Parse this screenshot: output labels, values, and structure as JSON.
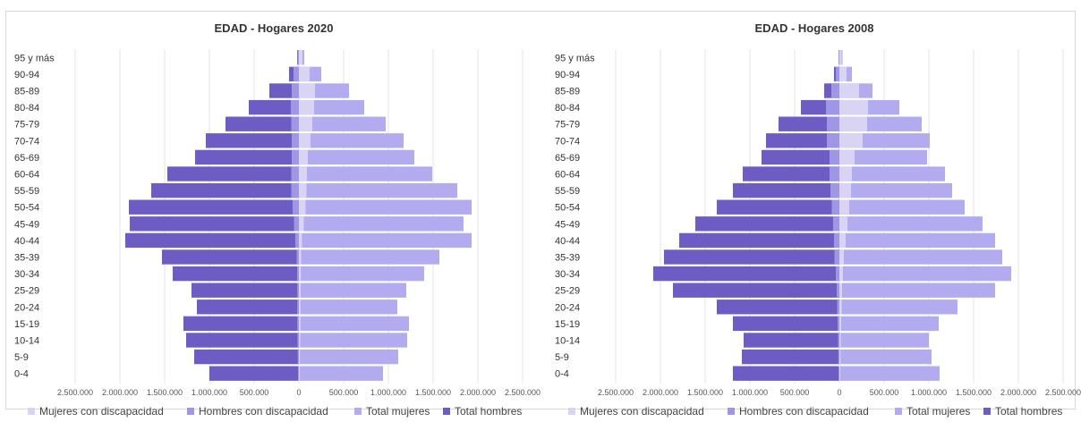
{
  "colors": {
    "mujeres_disc": "#d9d4f4",
    "hombres_disc": "#a096e6",
    "total_mujeres": "#b3abf0",
    "total_hombres": "#6c5cc3"
  },
  "chart_data": [
    {
      "type": "bar",
      "title": "EDAD - Hogares 2020",
      "categories": [
        "95 y más",
        "90-94",
        "85-89",
        "80-84",
        "75-79",
        "70-74",
        "65-69",
        "60-64",
        "55-59",
        "50-54",
        "45-49",
        "40-44",
        "35-39",
        "30-34",
        "25-29",
        "20-24",
        "15-19",
        "10-14",
        "5-9",
        "0-4"
      ],
      "xlim": [
        -2500000,
        2500000
      ],
      "xticks": [
        -2500000,
        -2000000,
        -1500000,
        -1000000,
        -500000,
        0,
        500000,
        1000000,
        1500000,
        2000000,
        2500000
      ],
      "xtick_labels": [
        "2.500.000",
        "2.000.000",
        "1.500.000",
        "1.000.000",
        "500.000",
        "0",
        "500.000",
        "1.000.000",
        "1.500.000",
        "2.000.000",
        "2.500.000"
      ],
      "legend_position": "bottom",
      "series": [
        {
          "name": "Mujeres con discapacidad",
          "values": [
            40000,
            120000,
            180000,
            170000,
            150000,
            130000,
            100000,
            90000,
            85000,
            75000,
            55000,
            35000,
            25000,
            22000,
            20000,
            18000,
            18000,
            15000,
            12000,
            10000
          ]
        },
        {
          "name": "Hombres con discapacidad",
          "values": [
            15000,
            60000,
            80000,
            90000,
            85000,
            80000,
            80000,
            85000,
            85000,
            70000,
            55000,
            40000,
            25000,
            20000,
            18000,
            18000,
            18000,
            16000,
            13000,
            10000
          ]
        },
        {
          "name": "Total mujeres",
          "values": [
            60000,
            250000,
            560000,
            730000,
            970000,
            1170000,
            1290000,
            1490000,
            1770000,
            1930000,
            1840000,
            1930000,
            1570000,
            1400000,
            1200000,
            1100000,
            1230000,
            1210000,
            1110000,
            940000
          ]
        },
        {
          "name": "Total hombres",
          "values": [
            20000,
            110000,
            330000,
            560000,
            820000,
            1040000,
            1160000,
            1470000,
            1650000,
            1900000,
            1890000,
            1940000,
            1530000,
            1410000,
            1200000,
            1140000,
            1290000,
            1260000,
            1170000,
            1000000
          ]
        }
      ]
    },
    {
      "type": "bar",
      "title": "EDAD - Hogares 2008",
      "categories": [
        "95 y más",
        "90-94",
        "85-89",
        "80-84",
        "75-79",
        "70-74",
        "65-69",
        "60-64",
        "55-59",
        "50-54",
        "45-49",
        "40-44",
        "35-39",
        "30-34",
        "25-29",
        "20-24",
        "15-19",
        "10-14",
        "5-9",
        "0-4"
      ],
      "xlim": [
        -2500000,
        2500000
      ],
      "xticks": [
        -2500000,
        -2000000,
        -1500000,
        -1000000,
        -500000,
        0,
        500000,
        1000000,
        1500000,
        2000000,
        2500000
      ],
      "xtick_labels": [
        "2.500.000",
        "2.000.000",
        "1.500.000",
        "1.000.000",
        "500.000",
        "0",
        "500.000",
        "1.000.000",
        "1.500.000",
        "2.000.000",
        "2.500.000"
      ],
      "legend_position": "bottom",
      "series": [
        {
          "name": "Mujeres con discapacidad",
          "values": [
            25000,
            80000,
            220000,
            320000,
            310000,
            260000,
            170000,
            140000,
            130000,
            110000,
            90000,
            70000,
            50000,
            40000,
            30000,
            25000,
            20000,
            15000,
            12000,
            10000
          ]
        },
        {
          "name": "Hombres con discapacidad",
          "values": [
            10000,
            40000,
            90000,
            150000,
            140000,
            140000,
            110000,
            110000,
            100000,
            85000,
            70000,
            60000,
            55000,
            40000,
            30000,
            25000,
            20000,
            15000,
            12000,
            10000
          ]
        },
        {
          "name": "Total mujeres",
          "values": [
            35000,
            140000,
            370000,
            670000,
            920000,
            1010000,
            980000,
            1180000,
            1260000,
            1400000,
            1600000,
            1740000,
            1820000,
            1920000,
            1740000,
            1320000,
            1110000,
            1000000,
            1030000,
            1120000
          ]
        },
        {
          "name": "Total hombres",
          "values": [
            10000,
            60000,
            170000,
            430000,
            680000,
            820000,
            870000,
            1080000,
            1190000,
            1370000,
            1610000,
            1790000,
            1960000,
            2080000,
            1860000,
            1370000,
            1190000,
            1070000,
            1090000,
            1190000
          ]
        }
      ]
    }
  ]
}
